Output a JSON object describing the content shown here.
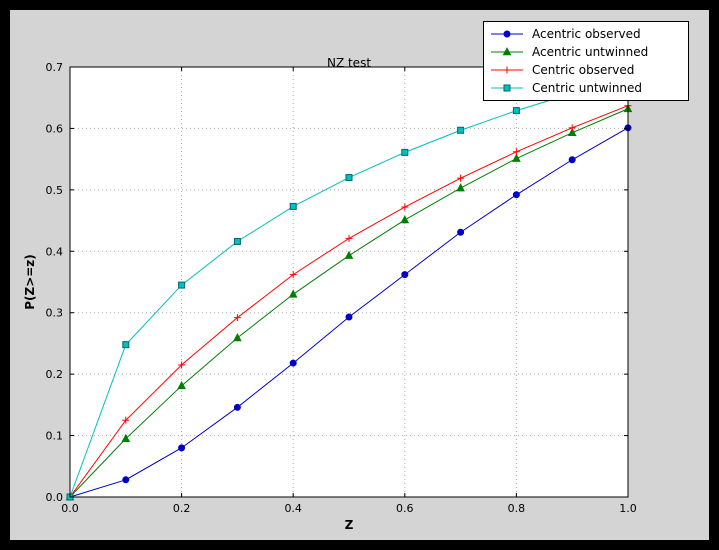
{
  "colors": {
    "window_background": "#000000",
    "figure_background": "#d4d4d4",
    "plot_background": "#ffffff",
    "grid": "#aaaaaa",
    "frame": "#000000",
    "legend_background": "#ffffff"
  },
  "chart_data": {
    "type": "line",
    "title": "NZ test",
    "xlabel": "Z",
    "ylabel": "P(Z>=z)",
    "xlim": [
      0.0,
      1.0
    ],
    "ylim": [
      0.0,
      0.7
    ],
    "x_ticks": [
      "0.0",
      "0.2",
      "0.4",
      "0.6",
      "0.8",
      "1.0"
    ],
    "y_ticks": [
      "0.0",
      "0.1",
      "0.2",
      "0.3",
      "0.4",
      "0.5",
      "0.6",
      "0.7"
    ],
    "grid": true,
    "legend_position": "upper right",
    "x": [
      0.0,
      0.1,
      0.2,
      0.3,
      0.4,
      0.5,
      0.6,
      0.7,
      0.8,
      0.9,
      1.0
    ],
    "series": [
      {
        "name": "Acentric observed",
        "color": "#0000cc",
        "marker": "circle",
        "values": [
          0.0,
          0.028,
          0.08,
          0.146,
          0.218,
          0.293,
          0.362,
          0.431,
          0.492,
          0.549,
          0.601
        ]
      },
      {
        "name": "Acentric untwinned",
        "color": "#007f00",
        "marker": "triangle",
        "values": [
          0.0,
          0.095,
          0.181,
          0.259,
          0.33,
          0.393,
          0.451,
          0.503,
          0.551,
          0.593,
          0.632
        ]
      },
      {
        "name": "Centric observed",
        "color": "#ff0000",
        "marker": "plus",
        "values": [
          0.0,
          0.125,
          0.215,
          0.292,
          0.362,
          0.421,
          0.472,
          0.519,
          0.562,
          0.601,
          0.637
        ]
      },
      {
        "name": "Centric untwinned",
        "color": "#00bfbf",
        "marker": "square",
        "values": [
          0.0,
          0.248,
          0.345,
          0.416,
          0.473,
          0.52,
          0.561,
          0.597,
          0.629,
          0.657,
          0.683
        ]
      }
    ]
  }
}
